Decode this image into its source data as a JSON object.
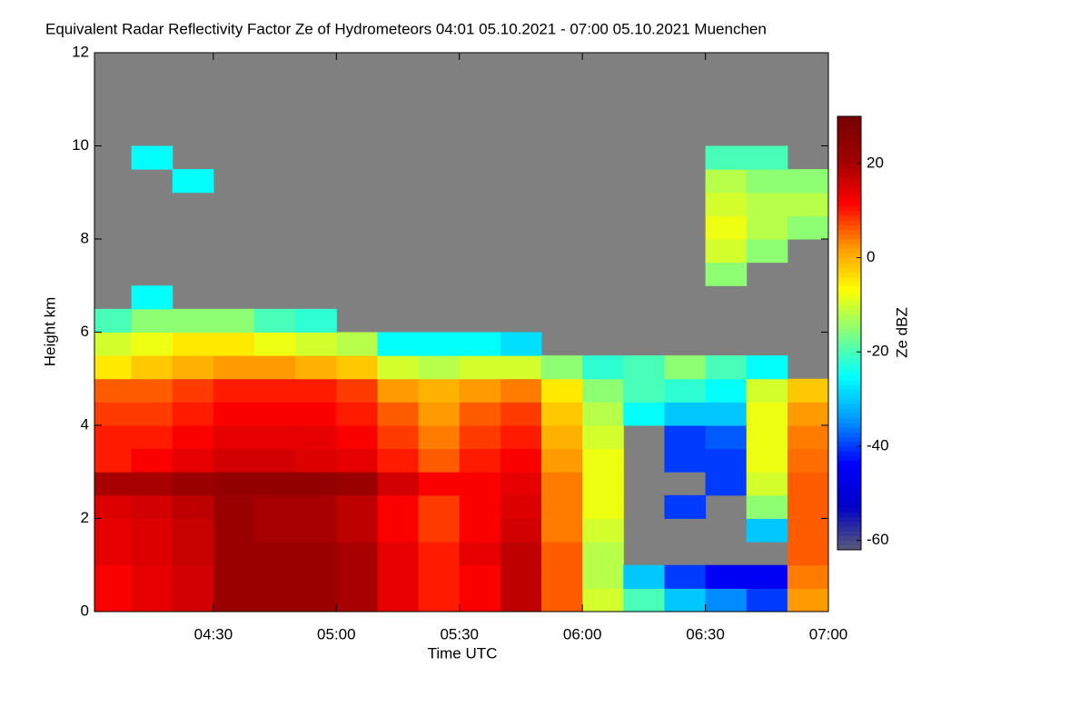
{
  "chart_data": {
    "type": "heatmap",
    "title": "Equivalent Radar Reflectivity Factor Ze of Hydrometeors   04:01 05.10.2021 - 07:00 05.10.2021 Muenchen",
    "xlabel": "Time UTC",
    "ylabel": "Height km",
    "colorbar_label": "Ze dBZ",
    "background": "#808080",
    "xlim": [
      241,
      420
    ],
    "xticks": [
      {
        "value": 270,
        "label": "04:30"
      },
      {
        "value": 300,
        "label": "05:00"
      },
      {
        "value": 330,
        "label": "05:30"
      },
      {
        "value": 360,
        "label": "06:00"
      },
      {
        "value": 390,
        "label": "06:30"
      },
      {
        "value": 420,
        "label": "07:00"
      }
    ],
    "ylim": [
      0,
      12
    ],
    "yticks": [
      0,
      2,
      4,
      6,
      8,
      10,
      12
    ],
    "x_bins": [
      241,
      250,
      260,
      270,
      280,
      290,
      300,
      310,
      320,
      330,
      340,
      350,
      360,
      370,
      380,
      390,
      400,
      410,
      420
    ],
    "y_bins": [
      0,
      0.5,
      1,
      1.5,
      2,
      2.5,
      3,
      3.5,
      4,
      4.5,
      5,
      5.5,
      6,
      6.5,
      7,
      7.5,
      8,
      8.5,
      9,
      9.5,
      10,
      10.5
    ],
    "clim": [
      -62,
      30
    ],
    "cticks": [
      20,
      0,
      -20,
      -40,
      -60
    ],
    "colorscale": [
      "#5a5a78",
      "#0000c8",
      "#0000ff",
      "#0096ff",
      "#00ffff",
      "#80ff80",
      "#ffff00",
      "#ff9600",
      "#ff0000",
      "#a00000",
      "#780000"
    ],
    "z": [
      [
        12,
        12,
        14,
        14,
        15,
        20,
        10,
        10,
        8,
        6,
        -5,
        -10,
        -20,
        null,
        null,
        null,
        null,
        null,
        null,
        null,
        null
      ],
      [
        14,
        14,
        15,
        15,
        16,
        20,
        12,
        10,
        8,
        6,
        -2,
        -8,
        -15,
        -25,
        null,
        null,
        null,
        null,
        null,
        -25,
        null
      ],
      [
        16,
        16,
        17,
        17,
        18,
        22,
        14,
        12,
        10,
        8,
        0,
        -5,
        -15,
        null,
        null,
        null,
        null,
        null,
        -25,
        null,
        null
      ],
      [
        22,
        22,
        22,
        22,
        22,
        24,
        16,
        14,
        12,
        10,
        2,
        -5,
        -15,
        null,
        null,
        null,
        null,
        null,
        null,
        null,
        null
      ],
      [
        22,
        22,
        22,
        20,
        20,
        24,
        16,
        14,
        12,
        10,
        2,
        -8,
        -20,
        null,
        null,
        null,
        null,
        null,
        null,
        null,
        null
      ],
      [
        22,
        22,
        22,
        20,
        20,
        24,
        15,
        14,
        12,
        10,
        0,
        -10,
        -22,
        null,
        null,
        null,
        null,
        null,
        null,
        null,
        null
      ],
      [
        20,
        20,
        20,
        18,
        18,
        22,
        14,
        12,
        10,
        8,
        -2,
        -12,
        null,
        null,
        null,
        null,
        null,
        null,
        null,
        null,
        null
      ],
      [
        14,
        14,
        14,
        12,
        12,
        16,
        10,
        8,
        6,
        2,
        -10,
        -25,
        null,
        null,
        null,
        null,
        null,
        null,
        null,
        null,
        null
      ],
      [
        10,
        10,
        10,
        8,
        8,
        12,
        6,
        4,
        2,
        0,
        -12,
        -25,
        null,
        null,
        null,
        null,
        null,
        null,
        null,
        null,
        null
      ],
      [
        12,
        12,
        14,
        12,
        12,
        12,
        10,
        8,
        6,
        2,
        -10,
        -25,
        null,
        null,
        null,
        null,
        null,
        null,
        null,
        null,
        null
      ],
      [
        18,
        18,
        18,
        16,
        15,
        14,
        12,
        10,
        8,
        4,
        -10,
        -28,
        null,
        null,
        null,
        null,
        null,
        null,
        null,
        null,
        null
      ],
      [
        6,
        6,
        6,
        4,
        4,
        4,
        2,
        0,
        -2,
        -5,
        -15,
        null,
        null,
        null,
        null,
        null,
        null,
        null,
        null,
        null,
        null
      ],
      [
        -10,
        -12,
        -12,
        -10,
        -8,
        -8,
        -8,
        -10,
        -12,
        -15,
        -22,
        null,
        null,
        null,
        null,
        null,
        null,
        null,
        null,
        null,
        null
      ],
      [
        -20,
        -30,
        null,
        null,
        null,
        null,
        null,
        null,
        -25,
        -20,
        -20,
        null,
        null,
        null,
        null,
        null,
        null,
        null,
        null,
        null,
        null
      ],
      [
        -30,
        -40,
        null,
        null,
        -40,
        null,
        -40,
        -40,
        -30,
        -22,
        -15,
        null,
        null,
        null,
        null,
        null,
        null,
        null,
        null,
        null,
        null
      ],
      [
        -35,
        -45,
        null,
        null,
        null,
        -40,
        -40,
        -38,
        -30,
        -25,
        -20,
        null,
        null,
        null,
        -15,
        -10,
        -8,
        -10,
        -12,
        -20,
        null
      ],
      [
        -40,
        -45,
        null,
        -30,
        -15,
        -10,
        -8,
        -8,
        -8,
        -10,
        -25,
        null,
        null,
        null,
        null,
        -15,
        -12,
        -12,
        -15,
        -20,
        null
      ],
      [
        2,
        4,
        6,
        6,
        6,
        6,
        5,
        4,
        2,
        -2,
        null,
        null,
        null,
        null,
        null,
        null,
        -15,
        -12,
        -15,
        null,
        null
      ]
    ]
  }
}
